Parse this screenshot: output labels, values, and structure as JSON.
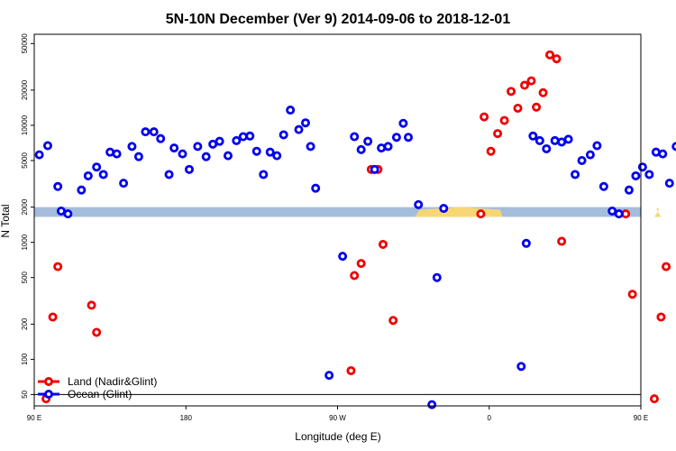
{
  "chart_data": {
    "type": "scatter",
    "title": "5N-10N December (Ver 9)   2014-09-06 to 2018-12-01",
    "xlabel": "Longitude (deg E)",
    "ylabel": "N Total",
    "y_scale": "log",
    "xlim": [
      90,
      450
    ],
    "ylim": [
      40,
      60000
    ],
    "x_ticks": [
      {
        "value": 90,
        "label": "90 E"
      },
      {
        "value": 180,
        "label": "180"
      },
      {
        "value": 270,
        "label": "90 W"
      },
      {
        "value": 360,
        "label": "0"
      },
      {
        "value": 450,
        "label": "90 E"
      },
      {
        "value": 540,
        "label": "180"
      }
    ],
    "y_ticks": [
      {
        "value": 50,
        "label": "50"
      },
      {
        "value": 100,
        "label": "100"
      },
      {
        "value": 200,
        "label": "200"
      },
      {
        "value": 500,
        "label": "500"
      },
      {
        "value": 1000,
        "label": "1000"
      },
      {
        "value": 2000,
        "label": "2000"
      },
      {
        "value": 5000,
        "label": "5000"
      },
      {
        "value": 10000,
        "label": "10000"
      },
      {
        "value": 20000,
        "label": "20000"
      },
      {
        "value": 50000,
        "label": "50000"
      }
    ],
    "reference_line_y": 50,
    "landmask_band": {
      "y_low": 1650,
      "y_high": 2000,
      "ocean_color": "#a5bddb",
      "land_color": "#f7d774"
    },
    "legend": {
      "placement": "bottom-left"
    },
    "series": [
      {
        "name": "Land (Nadir&Glint)",
        "color": "#ee0000",
        "points": [
          [
            97,
            46
          ],
          [
            101,
            230
          ],
          [
            104,
            620
          ],
          [
            124,
            290
          ],
          [
            127,
            170
          ],
          [
            278,
            80
          ],
          [
            280,
            520
          ],
          [
            284,
            660
          ],
          [
            290,
            4200
          ],
          [
            294,
            4200
          ],
          [
            297,
            960
          ],
          [
            303,
            215
          ],
          [
            355,
            1750
          ],
          [
            357,
            11800
          ],
          [
            361,
            6000
          ],
          [
            365,
            8500
          ],
          [
            369,
            11000
          ],
          [
            373,
            19500
          ],
          [
            377,
            14000
          ],
          [
            381,
            22000
          ],
          [
            385,
            24000
          ],
          [
            388,
            14300
          ],
          [
            392,
            19000
          ],
          [
            396,
            40000
          ],
          [
            400,
            37000
          ],
          [
            403,
            1020
          ],
          [
            441,
            1750
          ],
          [
            445,
            360
          ],
          [
            458,
            46
          ],
          [
            462,
            230
          ],
          [
            465,
            620
          ],
          [
            485,
            290
          ],
          [
            488,
            170
          ]
        ]
      },
      {
        "name": "Ocean (Glint)",
        "color": "#0000ee",
        "points": [
          [
            93,
            5600
          ],
          [
            98,
            6700
          ],
          [
            104,
            3000
          ],
          [
            106,
            1850
          ],
          [
            110,
            1750
          ],
          [
            118,
            2800
          ],
          [
            122,
            3700
          ],
          [
            127,
            4400
          ],
          [
            131,
            3800
          ],
          [
            135,
            5900
          ],
          [
            139,
            5700
          ],
          [
            143,
            3200
          ],
          [
            148,
            6600
          ],
          [
            152,
            5400
          ],
          [
            156,
            8800
          ],
          [
            161,
            8800
          ],
          [
            165,
            7700
          ],
          [
            170,
            3800
          ],
          [
            173,
            6400
          ],
          [
            178,
            5700
          ],
          [
            182,
            4200
          ],
          [
            187,
            6600
          ],
          [
            192,
            5400
          ],
          [
            196,
            6900
          ],
          [
            200,
            7300
          ],
          [
            205,
            5500
          ],
          [
            210,
            7400
          ],
          [
            214,
            8000
          ],
          [
            218,
            8100
          ],
          [
            222,
            6000
          ],
          [
            226,
            3800
          ],
          [
            230,
            5900
          ],
          [
            234,
            5500
          ],
          [
            238,
            8300
          ],
          [
            242,
            13500
          ],
          [
            247,
            9200
          ],
          [
            251,
            10500
          ],
          [
            254,
            6600
          ],
          [
            257,
            2900
          ],
          [
            265,
            73
          ],
          [
            273,
            760
          ],
          [
            280,
            8000
          ],
          [
            284,
            6200
          ],
          [
            288,
            7300
          ],
          [
            292,
            4200
          ],
          [
            296,
            6400
          ],
          [
            300,
            6600
          ],
          [
            305,
            7900
          ],
          [
            309,
            10400
          ],
          [
            312,
            7900
          ],
          [
            318,
            2100
          ],
          [
            326,
            41
          ],
          [
            329,
            500
          ],
          [
            333,
            1950
          ],
          [
            379,
            87
          ],
          [
            382,
            980
          ],
          [
            386,
            8100
          ],
          [
            390,
            7400
          ],
          [
            394,
            6300
          ],
          [
            399,
            7400
          ],
          [
            403,
            7200
          ],
          [
            407,
            7600
          ],
          [
            411,
            3800
          ],
          [
            415,
            5000
          ],
          [
            420,
            5600
          ],
          [
            424,
            6700
          ],
          [
            428,
            3000
          ],
          [
            433,
            1850
          ],
          [
            437,
            1750
          ],
          [
            443,
            2800
          ],
          [
            447,
            3700
          ],
          [
            451,
            4400
          ],
          [
            455,
            3800
          ],
          [
            459,
            5900
          ],
          [
            463,
            5700
          ],
          [
            467,
            3200
          ],
          [
            471,
            6600
          ],
          [
            475,
            5400
          ],
          [
            479,
            8800
          ],
          [
            483,
            8800
          ],
          [
            487,
            7700
          ],
          [
            492,
            3800
          ]
        ]
      }
    ]
  }
}
